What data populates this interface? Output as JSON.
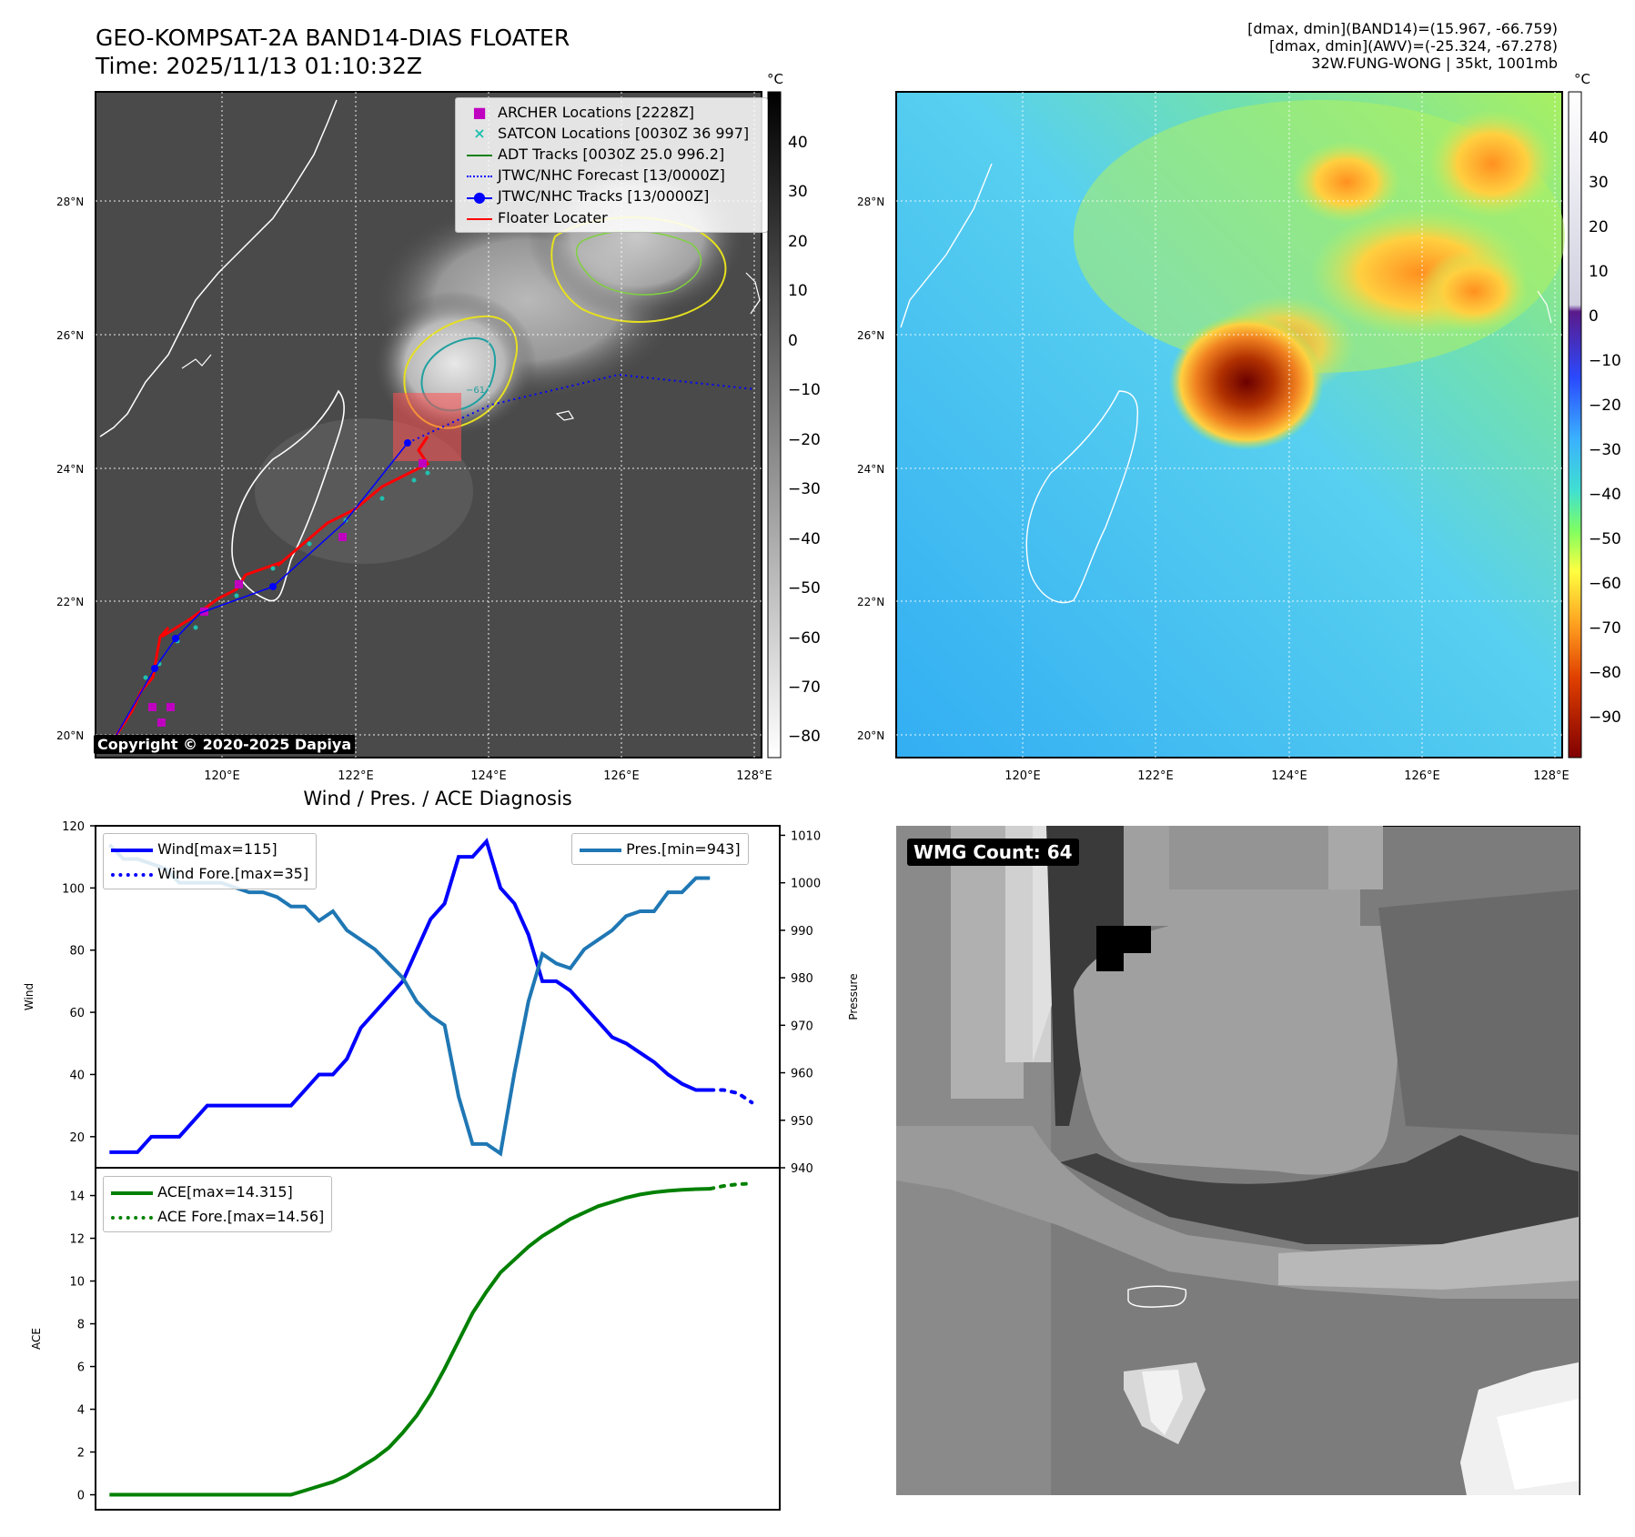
{
  "header": {
    "title_line1": "GEO-KOMPSAT-2A BAND14-DIAS FLOATER",
    "title_line2": "Time: 2025/11/13 01:10:32Z",
    "info_line1": "[dmax, dmin](BAND14)=(15.967, -66.759)",
    "info_line2": "[dmax, dmin](AWV)=(-25.324, -67.278)",
    "info_line3": "32W.FUNG-WONG | 35kt, 1001mb"
  },
  "map_left": {
    "legend": [
      {
        "label": "ARCHER Locations [2228Z]",
        "color": "#c000c0",
        "style": "square"
      },
      {
        "label": "SATCON Locations [0030Z 36 997]",
        "color": "#20c0b0",
        "style": "x"
      },
      {
        "label": "ADT Tracks [0030Z 25.0 996.2]",
        "color": "#108010",
        "style": "line"
      },
      {
        "label": "JTWC/NHC Forecast [13/0000Z]",
        "color": "#0000ff",
        "style": "dotted"
      },
      {
        "label": "JTWC/NHC Tracks [13/0000Z]",
        "color": "#0000ff",
        "style": "line-dot"
      },
      {
        "label": "Floater Locater",
        "color": "#ff0000",
        "style": "line"
      }
    ],
    "copyright": "Copyright © 2020-2025 Dapiya",
    "lat_labels": [
      "28°N",
      "26°N",
      "24°N",
      "22°N",
      "20°N"
    ],
    "lon_labels": [
      "120°E",
      "122°E",
      "124°E",
      "126°E",
      "128°E"
    ],
    "colorbar_unit": "°C",
    "colorbar_ticks": [
      "40",
      "30",
      "20",
      "10",
      "0",
      "−10",
      "−20",
      "−30",
      "−40",
      "−50",
      "−60",
      "−70",
      "−80"
    ],
    "contour_label": "−61"
  },
  "map_right": {
    "lat_labels": [
      "28°N",
      "26°N",
      "24°N",
      "22°N",
      "20°N"
    ],
    "lon_labels": [
      "120°E",
      "122°E",
      "124°E",
      "126°E",
      "128°E"
    ],
    "colorbar_unit": "°C",
    "colorbar_ticks": [
      "40",
      "30",
      "20",
      "10",
      "0",
      "−10",
      "−20",
      "−30",
      "−40",
      "−50",
      "−60",
      "−70",
      "−80",
      "−90"
    ]
  },
  "diagnosis": {
    "title": "Wind / Pres. / ACE Diagnosis",
    "wind_legend": "Wind[max=115]",
    "wind_fore_legend": "Wind Fore.[max=35]",
    "pres_legend": "Pres.[min=943]",
    "ace_legend": "ACE[max=14.315]",
    "ace_fore_legend": "ACE Fore.[max=14.56]",
    "wind_ylabel": "Wind",
    "pres_ylabel": "Pressure",
    "ace_ylabel": "ACE"
  },
  "wmg": {
    "label": "WMG Count: 64"
  },
  "chart_data": [
    {
      "type": "line",
      "title": "Wind / Pres. / ACE Diagnosis",
      "ylabel": "Wind",
      "ylim": [
        10,
        120
      ],
      "y_ticks": [
        20,
        40,
        60,
        80,
        100,
        120
      ],
      "series": [
        {
          "name": "Wind[max=115]",
          "color": "#0000ff",
          "style": "solid",
          "x": [
            0,
            1,
            2,
            3,
            4,
            5,
            6,
            7,
            8,
            9,
            10,
            11,
            12,
            13,
            14,
            15,
            16,
            17,
            18,
            19,
            20,
            21,
            22,
            23,
            24,
            25,
            26,
            27,
            28,
            29,
            30,
            31,
            32,
            33,
            34,
            35,
            36,
            37,
            38,
            39,
            40,
            41,
            42,
            43
          ],
          "values": [
            15,
            15,
            15,
            20,
            20,
            20,
            25,
            30,
            30,
            30,
            30,
            30,
            30,
            30,
            35,
            40,
            40,
            45,
            55,
            60,
            65,
            70,
            80,
            90,
            95,
            110,
            110,
            115,
            100,
            95,
            85,
            70,
            70,
            67,
            62,
            57,
            52,
            50,
            47,
            44,
            40,
            37,
            35,
            35
          ]
        },
        {
          "name": "Wind Fore.[max=35]",
          "color": "#0000ff",
          "style": "dotted",
          "x": [
            43,
            44,
            45,
            46
          ],
          "values": [
            35,
            35,
            34,
            31
          ]
        },
        {
          "name": "Pres.[min=943]",
          "color": "#1f77b4",
          "style": "solid",
          "axis": "right",
          "ylim": [
            940,
            1012
          ],
          "y_ticks": [
            940,
            950,
            960,
            970,
            980,
            990,
            1000,
            1010
          ],
          "x": [
            0,
            1,
            2,
            3,
            4,
            5,
            6,
            7,
            8,
            9,
            10,
            11,
            12,
            13,
            14,
            15,
            16,
            17,
            18,
            19,
            20,
            21,
            22,
            23,
            24,
            25,
            26,
            27,
            28,
            29,
            30,
            31,
            32,
            33,
            34,
            35,
            36,
            37,
            38,
            39,
            40,
            41,
            42,
            43
          ],
          "values": [
            1008,
            1005,
            1005,
            1004,
            1003,
            1000,
            1000,
            1000,
            1000,
            999,
            998,
            998,
            997,
            995,
            995,
            992,
            994,
            990,
            988,
            986,
            983,
            980,
            975,
            972,
            970,
            955,
            945,
            945,
            943,
            960,
            975,
            985,
            983,
            982,
            986,
            988,
            990,
            993,
            994,
            994,
            998,
            998,
            1001,
            1001
          ]
        }
      ]
    },
    {
      "type": "line",
      "ylabel": "ACE",
      "ylim": [
        -0.7,
        15.3
      ],
      "y_ticks": [
        0,
        2,
        4,
        6,
        8,
        10,
        12,
        14
      ],
      "series": [
        {
          "name": "ACE[max=14.315]",
          "color": "#008000",
          "style": "solid",
          "x": [
            0,
            1,
            2,
            3,
            4,
            5,
            6,
            7,
            8,
            9,
            10,
            11,
            12,
            13,
            14,
            15,
            16,
            17,
            18,
            19,
            20,
            21,
            22,
            23,
            24,
            25,
            26,
            27,
            28,
            29,
            30,
            31,
            32,
            33,
            34,
            35,
            36,
            37,
            38,
            39,
            40,
            41,
            42,
            43
          ],
          "values": [
            0,
            0,
            0,
            0,
            0,
            0,
            0,
            0,
            0,
            0,
            0,
            0,
            0,
            0,
            0.2,
            0.4,
            0.6,
            0.9,
            1.3,
            1.7,
            2.2,
            2.9,
            3.7,
            4.7,
            5.9,
            7.2,
            8.5,
            9.5,
            10.4,
            11,
            11.6,
            12.1,
            12.5,
            12.9,
            13.2,
            13.5,
            13.7,
            13.9,
            14.05,
            14.15,
            14.22,
            14.27,
            14.3,
            14.315
          ]
        },
        {
          "name": "ACE Fore.[max=14.56]",
          "color": "#008000",
          "style": "dotted",
          "x": [
            43,
            44,
            45,
            46
          ],
          "values": [
            14.315,
            14.45,
            14.53,
            14.56
          ]
        }
      ]
    }
  ]
}
